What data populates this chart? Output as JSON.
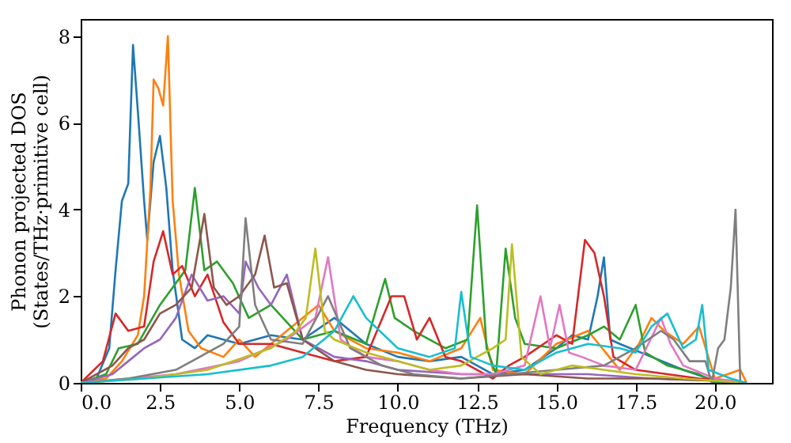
{
  "chart_data": {
    "type": "line",
    "xlabel": "Frequency (THz)",
    "ylabel": "Phonon projected DOS\n(States/THz·primitive cell)",
    "xlim": [
      0,
      21.8
    ],
    "ylim": [
      0,
      8.4
    ],
    "xticks": [
      {
        "value": 0,
        "label": "0.0"
      },
      {
        "value": 2.5,
        "label": "2.5"
      },
      {
        "value": 5,
        "label": "5.0"
      },
      {
        "value": 7.5,
        "label": "7.5"
      },
      {
        "value": 10,
        "label": "10.0"
      },
      {
        "value": 12.5,
        "label": "12.5"
      },
      {
        "value": 15,
        "label": "15.0"
      },
      {
        "value": 17.5,
        "label": "17.5"
      },
      {
        "value": 20,
        "label": "20.0"
      }
    ],
    "yticks": [
      0,
      2,
      4,
      6,
      8
    ],
    "grid": false,
    "legend": false,
    "line_style": "solid",
    "marker": "none",
    "series": [
      {
        "color": "#1f77b4",
        "x": [
          0,
          0.5,
          0.9,
          1.1,
          1.3,
          1.5,
          1.65,
          1.8,
          2.0,
          2.1,
          2.3,
          2.5,
          2.7,
          2.9,
          3.2,
          3.6,
          4.0,
          5.0,
          6.0,
          7.0,
          8.0,
          9.0,
          10.0,
          11.0,
          12.0,
          13.0,
          14.0,
          15.0,
          15.5,
          16.0,
          16.3,
          16.5,
          16.7,
          17.0,
          18.0,
          19.0,
          20.0,
          21.0
        ],
        "values": [
          0,
          0.1,
          0.8,
          2.6,
          4.2,
          4.6,
          7.8,
          6.3,
          4.2,
          3.3,
          5.1,
          5.7,
          4.5,
          2.6,
          1.0,
          0.8,
          1.1,
          0.9,
          1.1,
          1.0,
          1.5,
          0.9,
          0.6,
          0.5,
          0.6,
          0.2,
          0.3,
          0.8,
          1.1,
          1.0,
          2.0,
          2.9,
          1.0,
          0.9,
          0.6,
          0.3,
          0.05,
          0
        ]
      },
      {
        "color": "#ff7f0e",
        "x": [
          0,
          0.8,
          1.3,
          1.8,
          2.0,
          2.2,
          2.3,
          2.45,
          2.6,
          2.75,
          2.9,
          3.1,
          3.4,
          3.8,
          4.5,
          5.0,
          5.5,
          6.5,
          7.5,
          8.0,
          9.0,
          10.0,
          11.0,
          12.0,
          12.6,
          13.0,
          14.0,
          15.0,
          16.0,
          17.0,
          17.6,
          18.0,
          18.4,
          19.0,
          19.5,
          20.0,
          20.8,
          21.0
        ],
        "values": [
          0,
          0.1,
          0.5,
          1.1,
          2.0,
          4.5,
          7.0,
          6.8,
          6.4,
          8.0,
          4.2,
          2.5,
          1.2,
          0.8,
          0.6,
          1.0,
          0.6,
          1.2,
          1.8,
          1.2,
          0.8,
          0.7,
          0.5,
          0.8,
          1.5,
          0.3,
          0.2,
          0.9,
          1.2,
          0.3,
          0.9,
          1.5,
          1.2,
          0.9,
          1.3,
          0.1,
          0.3,
          0
        ]
      },
      {
        "color": "#2ca02c",
        "x": [
          0,
          0.8,
          1.2,
          1.8,
          2.5,
          3.0,
          3.3,
          3.6,
          3.9,
          4.3,
          4.8,
          5.3,
          6.0,
          7.0,
          8.0,
          9.0,
          9.6,
          9.9,
          10.5,
          11.5,
          12.2,
          12.5,
          12.8,
          13.1,
          13.4,
          13.7,
          14.0,
          15.0,
          16.0,
          16.5,
          17.0,
          17.5,
          17.8,
          18.5,
          19.5,
          20.0,
          21.0
        ],
        "values": [
          0,
          0.2,
          0.8,
          0.9,
          1.8,
          2.3,
          2.6,
          4.5,
          2.6,
          2.8,
          2.3,
          1.5,
          1.8,
          1.0,
          1.2,
          0.9,
          2.4,
          1.5,
          1.2,
          0.8,
          1.0,
          4.1,
          0.8,
          0.2,
          3.1,
          1.5,
          0.9,
          0.8,
          1.1,
          1.3,
          1.0,
          1.8,
          0.7,
          0.4,
          0.2,
          0,
          0
        ]
      },
      {
        "color": "#d62728",
        "x": [
          0,
          0.7,
          1.1,
          1.5,
          2.0,
          2.3,
          2.6,
          2.9,
          3.2,
          3.6,
          4.0,
          4.5,
          5.0,
          6.0,
          7.0,
          8.0,
          9.0,
          9.8,
          10.2,
          10.6,
          11.0,
          11.5,
          12.0,
          13.0,
          13.5,
          14.0,
          15.0,
          15.5,
          15.9,
          16.2,
          16.5,
          16.8,
          17.5,
          18.5,
          19.5,
          20.5,
          21.0
        ],
        "values": [
          0,
          0.5,
          1.6,
          1.2,
          1.3,
          2.8,
          3.5,
          2.5,
          2.7,
          2.0,
          2.5,
          1.4,
          0.9,
          0.9,
          0.7,
          0.5,
          0.6,
          2.0,
          2.0,
          1.0,
          1.5,
          0.6,
          0.5,
          0.1,
          0.4,
          0.6,
          1.1,
          0.9,
          3.3,
          3.0,
          2.0,
          0.6,
          0.3,
          0.2,
          0.1,
          0.05,
          0
        ]
      },
      {
        "color": "#9467bd",
        "x": [
          0,
          1.0,
          1.5,
          2.0,
          2.5,
          3.0,
          3.5,
          4.0,
          4.5,
          5.0,
          5.2,
          5.6,
          6.0,
          6.5,
          7.0,
          8.0,
          9.0,
          10.0,
          12.0,
          14.0,
          16.0,
          18.0,
          20.0,
          21.0
        ],
        "values": [
          0,
          0.2,
          0.5,
          0.8,
          1.0,
          1.5,
          2.5,
          1.9,
          2.0,
          1.6,
          2.8,
          2.2,
          1.8,
          2.5,
          1.0,
          0.6,
          0.5,
          0.3,
          0.2,
          0.2,
          0.2,
          0.1,
          0.05,
          0
        ]
      },
      {
        "color": "#8c564b",
        "x": [
          0,
          1.0,
          1.5,
          2.0,
          2.5,
          3.0,
          3.5,
          3.9,
          4.2,
          4.6,
          5.0,
          5.5,
          5.8,
          6.1,
          6.5,
          7.0,
          8.0,
          9.0,
          10.0,
          12.0,
          14.0,
          16.0,
          18.0,
          20.0,
          21.0
        ],
        "values": [
          0,
          0.4,
          0.8,
          1.0,
          1.6,
          1.8,
          2.2,
          3.9,
          2.2,
          1.8,
          2.0,
          2.5,
          3.4,
          2.2,
          2.3,
          1.0,
          0.5,
          0.3,
          0.2,
          0.1,
          0.2,
          0.1,
          0.1,
          0.05,
          0
        ]
      },
      {
        "color": "#e377c2",
        "x": [
          0,
          1.5,
          3.0,
          5.0,
          6.5,
          7.4,
          7.8,
          8.2,
          9.0,
          10.0,
          11.0,
          12.0,
          13.0,
          14.0,
          14.5,
          14.8,
          15.1,
          15.4,
          15.8,
          16.5,
          17.5,
          18.3,
          18.6,
          19.0,
          20.0,
          21.0
        ],
        "values": [
          0,
          0.1,
          0.2,
          0.5,
          1.0,
          1.5,
          2.9,
          1.0,
          0.6,
          0.5,
          0.3,
          0.2,
          0.2,
          0.4,
          2.0,
          0.8,
          1.8,
          0.7,
          0.6,
          0.4,
          0.3,
          1.5,
          0.9,
          0.4,
          0.1,
          0
        ]
      },
      {
        "color": "#7f7f7f",
        "x": [
          0,
          1.5,
          3.0,
          4.5,
          5.0,
          5.2,
          5.5,
          6.0,
          7.0,
          7.8,
          8.5,
          9.5,
          10.5,
          12.0,
          13.5,
          15.0,
          16.5,
          17.5,
          18.3,
          18.7,
          19.2,
          19.7,
          19.9,
          20.1,
          20.3,
          20.5,
          20.65,
          20.8,
          21.0
        ],
        "values": [
          0,
          0.1,
          0.3,
          0.9,
          1.3,
          3.8,
          1.8,
          1.0,
          0.9,
          2.0,
          0.8,
          0.4,
          0.2,
          0.1,
          0.2,
          0.3,
          0.4,
          0.8,
          1.2,
          1.0,
          0.5,
          0.5,
          0,
          0.8,
          1.0,
          2.2,
          4.0,
          0,
          0
        ]
      },
      {
        "color": "#bcbd22",
        "x": [
          0,
          2.0,
          4.0,
          6.0,
          6.8,
          7.1,
          7.4,
          7.7,
          8.0,
          9.0,
          10.0,
          11.0,
          12.0,
          13.0,
          13.4,
          13.6,
          13.9,
          14.5,
          15.5,
          16.5,
          17.5,
          19.0,
          21.0
        ],
        "values": [
          0,
          0.1,
          0.3,
          0.8,
          1.2,
          1.5,
          3.1,
          1.2,
          1.0,
          0.7,
          0.5,
          0.3,
          0.4,
          0.8,
          1.0,
          3.2,
          0.6,
          0.2,
          0.4,
          0.3,
          0.2,
          0.1,
          0
        ]
      },
      {
        "color": "#17becf",
        "x": [
          0,
          2.0,
          4.0,
          6.0,
          7.0,
          8.0,
          8.6,
          9.0,
          10.0,
          11.0,
          11.8,
          12.0,
          12.3,
          13.0,
          14.0,
          15.0,
          16.0,
          17.0,
          17.5,
          18.0,
          18.5,
          19.0,
          19.4,
          19.6,
          19.8,
          20.5,
          21.0
        ],
        "values": [
          0,
          0.1,
          0.2,
          0.4,
          0.6,
          1.2,
          2.0,
          1.5,
          0.8,
          0.6,
          0.8,
          2.1,
          0.6,
          0.4,
          0.3,
          0.7,
          0.9,
          0.8,
          0.7,
          1.3,
          1.6,
          0.8,
          1.0,
          1.8,
          0.3,
          0.1,
          0
        ]
      }
    ]
  }
}
